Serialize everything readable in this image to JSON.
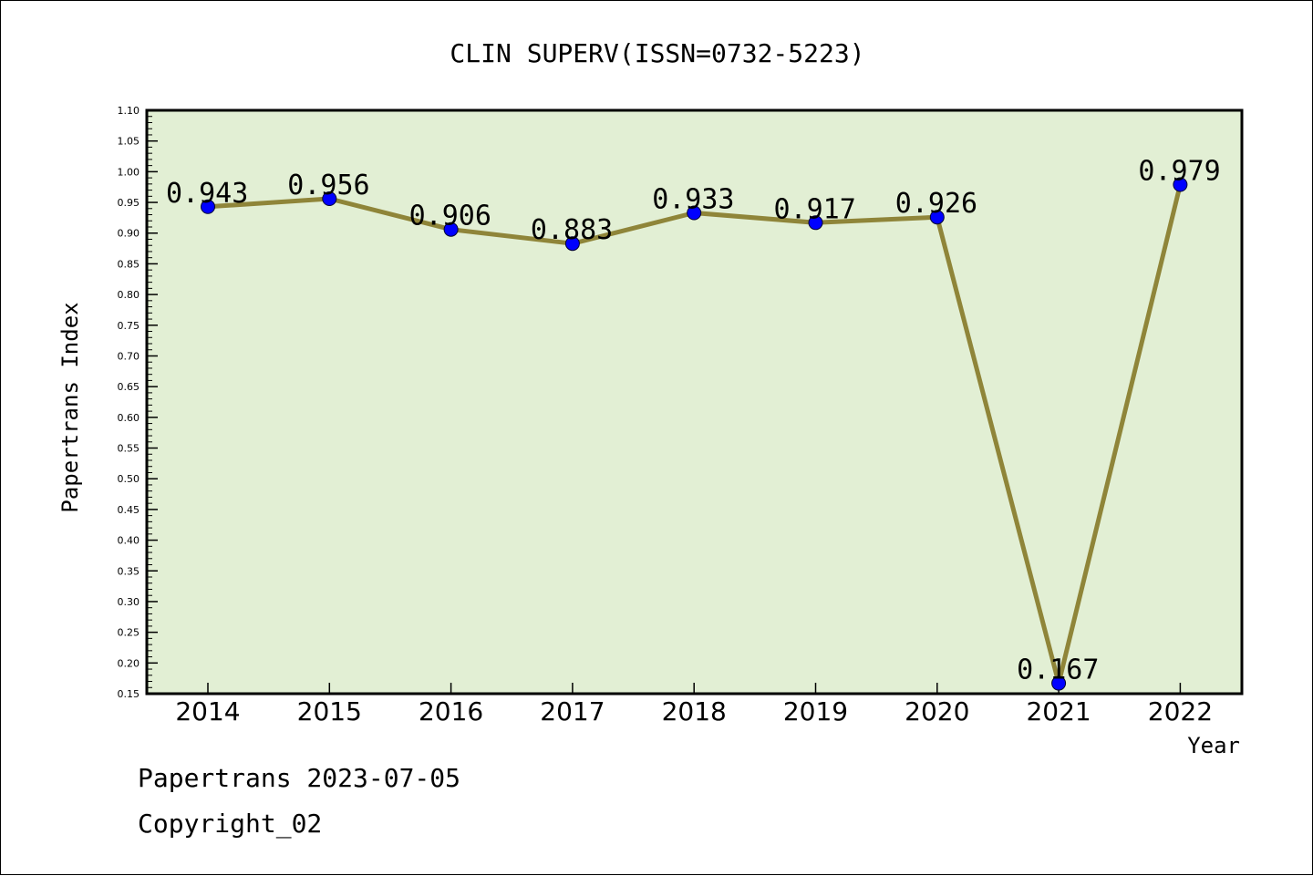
{
  "chart_data": {
    "type": "line",
    "title": "CLIN SUPERV(ISSN=0732-5223)",
    "xlabel": "Year",
    "ylabel": "Papertrans Index",
    "categories": [
      "2014",
      "2015",
      "2016",
      "2017",
      "2018",
      "2019",
      "2020",
      "2021",
      "2022"
    ],
    "series": [
      {
        "values": [
          0.943,
          0.956,
          0.906,
          0.883,
          0.933,
          0.917,
          0.926,
          0.167,
          0.979
        ]
      }
    ],
    "data_labels": [
      "0.943",
      "0.956",
      "0.906",
      "0.883",
      "0.933",
      "0.917",
      "0.926",
      "0.167",
      "0.979"
    ],
    "ylim": [
      0.15,
      1.1
    ],
    "yticks": [
      "0.15",
      "0.20",
      "0.25",
      "0.30",
      "0.35",
      "0.40",
      "0.45",
      "0.50",
      "0.55",
      "0.60",
      "0.65",
      "0.70",
      "0.75",
      "0.80",
      "0.85",
      "0.90",
      "0.95",
      "1.00",
      "1.05",
      "1.10"
    ],
    "grid": false,
    "colors": {
      "plot_background": "#e2efd4",
      "line": "#8f8539",
      "marker": "#0000ff"
    }
  },
  "footer": {
    "line1": "Papertrans 2023-07-05",
    "line2": "Copyright_02"
  }
}
